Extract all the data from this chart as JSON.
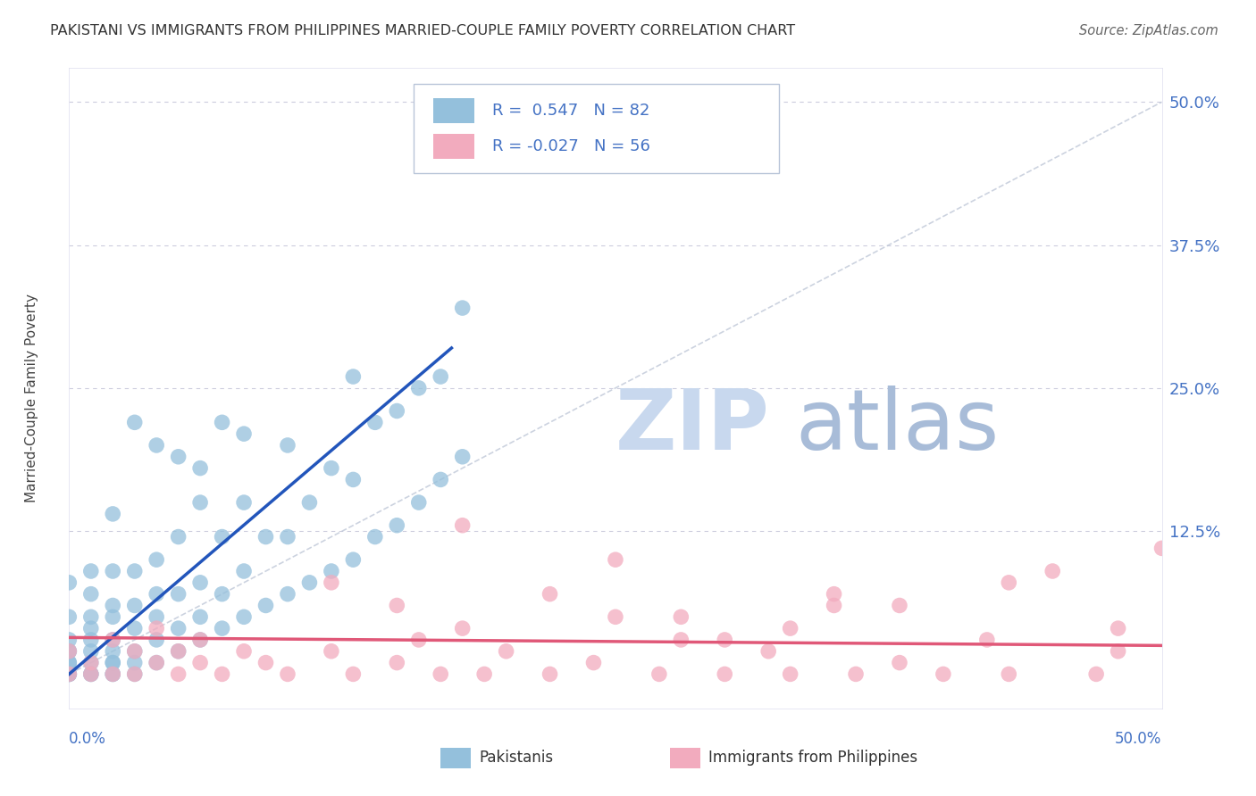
{
  "title": "PAKISTANI VS IMMIGRANTS FROM PHILIPPINES MARRIED-COUPLE FAMILY POVERTY CORRELATION CHART",
  "source": "Source: ZipAtlas.com",
  "ylabel": "Married-Couple Family Poverty",
  "xlim": [
    0.0,
    0.5
  ],
  "ylim": [
    -0.03,
    0.53
  ],
  "ytick_vals": [
    0.0,
    0.125,
    0.25,
    0.375,
    0.5
  ],
  "ytick_labels": [
    "",
    "12.5%",
    "25.0%",
    "37.5%",
    "50.0%"
  ],
  "blue_color": "#94C0DC",
  "pink_color": "#F2ABBE",
  "blue_line_color": "#2255BB",
  "pink_line_color": "#E05878",
  "diag_color": "#C0C8D8",
  "grid_color": "#CCCCDD",
  "blue_trend_x0": 0.0,
  "blue_trend_y0": 0.0,
  "blue_trend_x1": 0.175,
  "blue_trend_y1": 0.285,
  "pink_trend_x0": 0.0,
  "pink_trend_y0": 0.032,
  "pink_trend_x1": 0.5,
  "pink_trend_y1": 0.025,
  "watermark_zip_color": "#C8D8EE",
  "watermark_atlas_color": "#A8BCD8",
  "legend_r1_text": "R =  0.547   N = 82",
  "legend_r2_text": "R = -0.027   N = 56",
  "pak_x": [
    0.0,
    0.0,
    0.0,
    0.0,
    0.0,
    0.0,
    0.0,
    0.0,
    0.0,
    0.0,
    0.01,
    0.01,
    0.01,
    0.01,
    0.01,
    0.01,
    0.01,
    0.01,
    0.01,
    0.02,
    0.02,
    0.02,
    0.02,
    0.02,
    0.02,
    0.02,
    0.02,
    0.02,
    0.02,
    0.03,
    0.03,
    0.03,
    0.03,
    0.03,
    0.03,
    0.04,
    0.04,
    0.04,
    0.04,
    0.04,
    0.05,
    0.05,
    0.05,
    0.05,
    0.06,
    0.06,
    0.06,
    0.06,
    0.07,
    0.07,
    0.07,
    0.08,
    0.08,
    0.08,
    0.09,
    0.09,
    0.1,
    0.1,
    0.1,
    0.11,
    0.11,
    0.12,
    0.12,
    0.13,
    0.13,
    0.13,
    0.14,
    0.14,
    0.15,
    0.15,
    0.16,
    0.16,
    0.17,
    0.17,
    0.18,
    0.18,
    0.03,
    0.04,
    0.05,
    0.06,
    0.07,
    0.08
  ],
  "pak_y": [
    0.0,
    0.0,
    0.0,
    0.01,
    0.01,
    0.02,
    0.02,
    0.03,
    0.05,
    0.08,
    0.0,
    0.0,
    0.01,
    0.02,
    0.03,
    0.04,
    0.05,
    0.07,
    0.09,
    0.0,
    0.0,
    0.01,
    0.01,
    0.02,
    0.03,
    0.05,
    0.06,
    0.09,
    0.14,
    0.0,
    0.01,
    0.02,
    0.04,
    0.06,
    0.09,
    0.01,
    0.03,
    0.05,
    0.07,
    0.1,
    0.02,
    0.04,
    0.07,
    0.12,
    0.03,
    0.05,
    0.08,
    0.15,
    0.04,
    0.07,
    0.12,
    0.05,
    0.09,
    0.15,
    0.06,
    0.12,
    0.07,
    0.12,
    0.2,
    0.08,
    0.15,
    0.09,
    0.18,
    0.1,
    0.17,
    0.26,
    0.12,
    0.22,
    0.13,
    0.23,
    0.15,
    0.25,
    0.17,
    0.26,
    0.19,
    0.32,
    0.22,
    0.2,
    0.19,
    0.18,
    0.22,
    0.21
  ],
  "phi_x": [
    0.0,
    0.0,
    0.01,
    0.01,
    0.02,
    0.02,
    0.03,
    0.03,
    0.04,
    0.04,
    0.05,
    0.05,
    0.06,
    0.06,
    0.07,
    0.08,
    0.09,
    0.1,
    0.12,
    0.13,
    0.15,
    0.16,
    0.17,
    0.18,
    0.19,
    0.2,
    0.22,
    0.24,
    0.25,
    0.27,
    0.28,
    0.3,
    0.32,
    0.33,
    0.35,
    0.36,
    0.38,
    0.4,
    0.42,
    0.43,
    0.45,
    0.47,
    0.48,
    0.5,
    0.25,
    0.35,
    0.12,
    0.18,
    0.22,
    0.28,
    0.33,
    0.38,
    0.43,
    0.48,
    0.15,
    0.3
  ],
  "phi_y": [
    0.0,
    0.02,
    0.0,
    0.01,
    0.0,
    0.03,
    0.0,
    0.02,
    0.01,
    0.04,
    0.0,
    0.02,
    0.01,
    0.03,
    0.0,
    0.02,
    0.01,
    0.0,
    0.02,
    0.0,
    0.01,
    0.03,
    0.0,
    0.04,
    0.0,
    0.02,
    0.0,
    0.01,
    0.05,
    0.0,
    0.03,
    0.0,
    0.02,
    0.0,
    0.07,
    0.0,
    0.01,
    0.0,
    0.03,
    0.0,
    0.09,
    0.0,
    0.02,
    0.11,
    0.1,
    0.06,
    0.08,
    0.13,
    0.07,
    0.05,
    0.04,
    0.06,
    0.08,
    0.04,
    0.06,
    0.03
  ]
}
